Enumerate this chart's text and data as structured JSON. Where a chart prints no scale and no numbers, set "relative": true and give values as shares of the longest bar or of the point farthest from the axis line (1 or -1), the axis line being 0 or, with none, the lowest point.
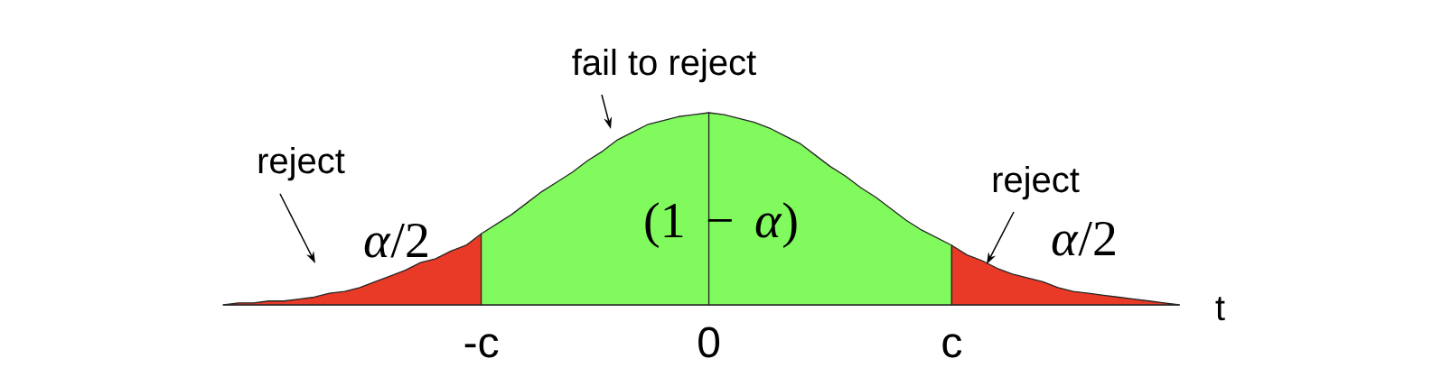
{
  "chart_data": {
    "type": "area",
    "relative": true,
    "xlabel": "t",
    "categories": [
      null,
      null,
      null,
      null,
      null,
      null,
      null,
      null,
      null,
      null,
      null,
      null,
      null,
      null,
      null,
      null,
      null,
      "-c",
      null,
      null,
      null,
      null,
      null,
      null,
      null,
      null,
      null,
      null,
      null,
      null,
      null,
      null,
      "0",
      null,
      null,
      null,
      null,
      null,
      null,
      null,
      null,
      null,
      null,
      null,
      null,
      null,
      null,
      null,
      "c",
      null,
      null,
      null,
      null,
      null,
      null,
      null,
      null,
      null,
      null,
      null,
      null,
      null,
      null,
      null
    ],
    "series": [
      {
        "color": "#e83a26",
        "values": [
          0,
          0.01,
          0.01,
          0.02,
          0.02,
          0.03,
          0.04,
          0.06,
          0.07,
          0.09,
          0.12,
          0.15,
          0.18,
          0.22,
          0.24,
          0.28,
          0.31,
          0.37,
          null,
          null,
          null,
          null,
          null,
          null,
          null,
          null,
          null,
          null,
          null,
          null,
          null,
          null,
          null,
          null,
          null,
          null,
          null,
          null,
          null,
          null,
          null,
          null,
          null,
          null,
          null,
          null,
          null,
          null,
          null,
          null,
          null,
          null,
          null,
          null,
          null,
          null,
          null,
          null,
          null,
          null,
          null,
          null,
          null,
          null
        ]
      },
      {
        "color": "#80fa5c",
        "values": [
          null,
          null,
          null,
          null,
          null,
          null,
          null,
          null,
          null,
          null,
          null,
          null,
          null,
          null,
          null,
          null,
          null,
          0.37,
          0.42,
          0.47,
          0.53,
          0.59,
          0.64,
          0.69,
          0.75,
          0.8,
          0.86,
          0.9,
          0.94,
          0.96,
          0.98,
          0.99,
          1,
          null,
          null,
          null,
          null,
          null,
          null,
          null,
          null,
          null,
          null,
          null,
          null,
          null,
          null,
          null,
          null,
          null,
          null,
          null,
          null,
          null,
          null,
          null,
          null,
          null,
          null,
          null,
          null,
          null,
          null,
          null
        ]
      },
      {
        "color": "#80fa5c",
        "values": [
          null,
          null,
          null,
          null,
          null,
          null,
          null,
          null,
          null,
          null,
          null,
          null,
          null,
          null,
          null,
          null,
          null,
          null,
          null,
          null,
          null,
          null,
          null,
          null,
          null,
          null,
          null,
          null,
          null,
          null,
          null,
          null,
          1,
          0.99,
          0.97,
          0.95,
          0.92,
          0.88,
          0.84,
          0.78,
          0.72,
          0.67,
          0.61,
          0.56,
          0.5,
          0.44,
          0.39,
          0.35,
          0.31,
          null,
          null,
          null,
          null,
          null,
          null,
          null,
          null,
          null,
          null,
          null,
          null,
          null,
          null,
          null
        ]
      },
      {
        "color": "#e83a26",
        "values": [
          null,
          null,
          null,
          null,
          null,
          null,
          null,
          null,
          null,
          null,
          null,
          null,
          null,
          null,
          null,
          null,
          null,
          null,
          null,
          null,
          null,
          null,
          null,
          null,
          null,
          null,
          null,
          null,
          null,
          null,
          null,
          null,
          null,
          null,
          null,
          null,
          null,
          null,
          null,
          null,
          null,
          null,
          null,
          null,
          null,
          null,
          null,
          null,
          0.31,
          0.26,
          0.23,
          0.19,
          0.16,
          0.14,
          0.12,
          0.09,
          0.07,
          0.06,
          0.05,
          0.04,
          0.03,
          0.02,
          0.01,
          0
        ]
      }
    ],
    "annotations": [
      "reject",
      "*α*/2",
      "fail to reject",
      "(1 − *α*)",
      "reject",
      "*α*/2"
    ]
  }
}
